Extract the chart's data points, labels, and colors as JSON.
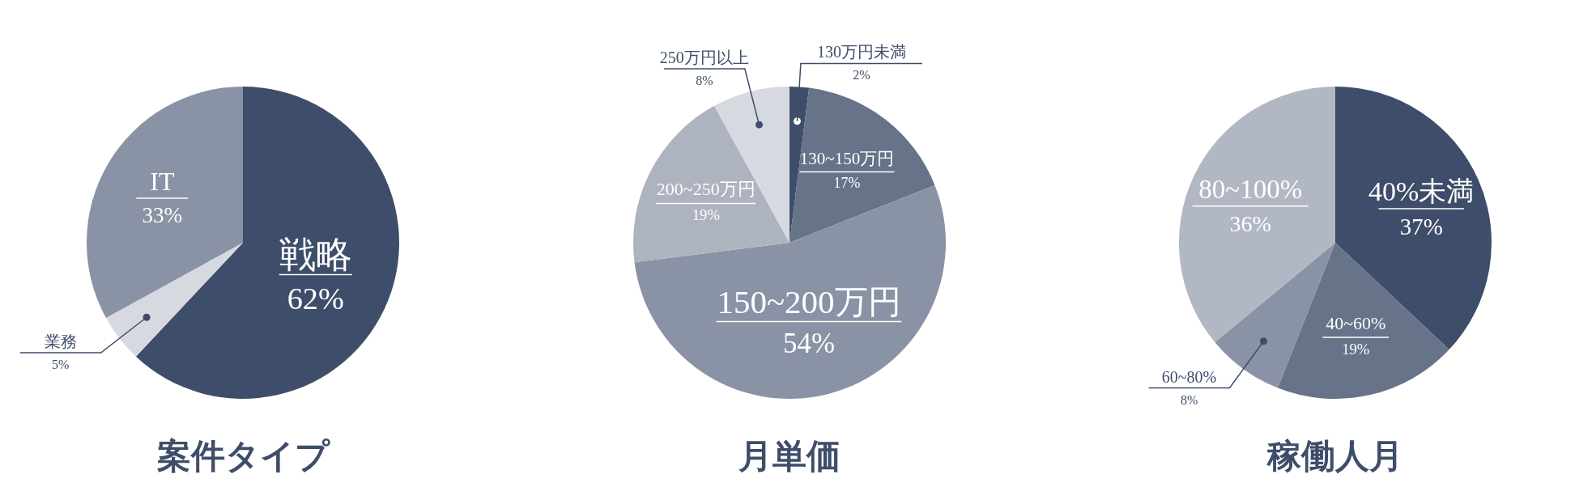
{
  "chart_data": [
    {
      "type": "pie",
      "title": "案件タイプ",
      "categories": [
        "戦略",
        "業務",
        "IT"
      ],
      "values": [
        62,
        5,
        33
      ],
      "colors": [
        "#3e4d69",
        "#d6d9e0",
        "#8a93a5"
      ],
      "value_labels": [
        "62%",
        "5%",
        "33%"
      ]
    },
    {
      "type": "pie",
      "title": "月単価",
      "categories": [
        "130万円未満",
        "130~150万円",
        "150~200万円",
        "200~250万円",
        "250万円以上"
      ],
      "values": [
        2,
        17,
        54,
        19,
        8
      ],
      "colors": [
        "#3e4d69",
        "#667389",
        "#8a93a5",
        "#adb3bf",
        "#d6d9e0"
      ],
      "value_labels": [
        "2%",
        "17%",
        "54%",
        "19%",
        "8%"
      ]
    },
    {
      "type": "pie",
      "title": "稼働人月",
      "categories": [
        "40%未満",
        "40~60%",
        "60~80%",
        "80~100%"
      ],
      "values": [
        37,
        19,
        8,
        36
      ],
      "colors": [
        "#3e4d69",
        "#667389",
        "#8a93a5",
        "#b1b7c3"
      ],
      "value_labels": [
        "37%",
        "19%",
        "8%",
        "36%"
      ]
    }
  ]
}
